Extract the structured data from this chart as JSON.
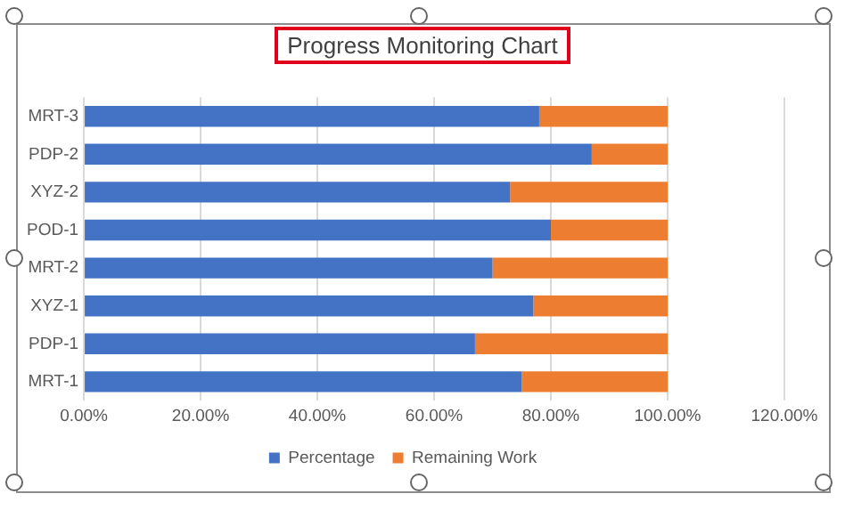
{
  "chart_data": {
    "type": "bar",
    "title": "Progress Monitoring Chart",
    "orientation": "horizontal",
    "stacked": true,
    "categories": [
      "MRT-3",
      "PDP-2",
      "XYZ-2",
      "POD-1",
      "MRT-2",
      "XYZ-1",
      "PDP-1",
      "MRT-1"
    ],
    "series": [
      {
        "name": "Percentage",
        "color": "#4472c4",
        "values": [
          78,
          87,
          73,
          80,
          70,
          77,
          67,
          75
        ]
      },
      {
        "name": "Remaining Work",
        "color": "#ed7d31",
        "values": [
          22,
          13,
          27,
          20,
          30,
          23,
          33,
          25
        ]
      }
    ],
    "xlim": [
      0,
      120
    ],
    "xticks": [
      {
        "value": 0,
        "label": "0.00%"
      },
      {
        "value": 20,
        "label": "20.00%"
      },
      {
        "value": 40,
        "label": "40.00%"
      },
      {
        "value": 60,
        "label": "60.00%"
      },
      {
        "value": 80,
        "label": "80.00%"
      },
      {
        "value": 100,
        "label": "100.00%"
      },
      {
        "value": 120,
        "label": "120.00%"
      }
    ],
    "grid": "x",
    "legend": "bottom"
  }
}
